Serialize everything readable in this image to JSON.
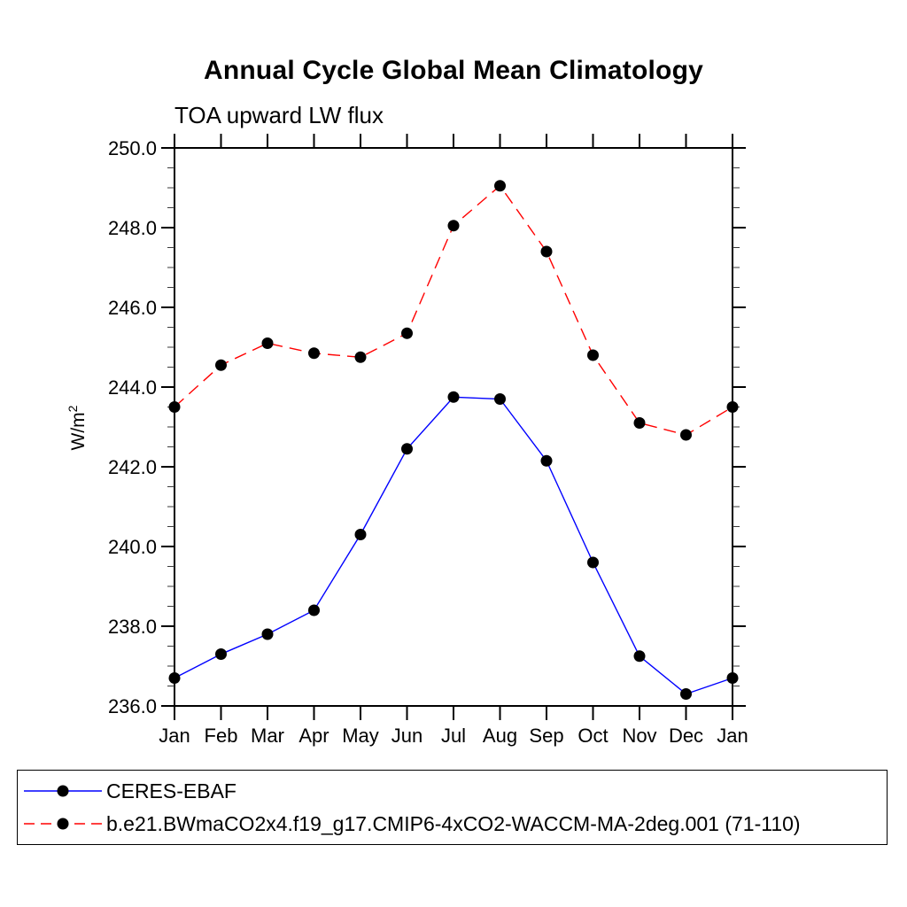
{
  "chart_data": {
    "type": "line",
    "title": "Annual Cycle Global Mean Climatology",
    "subtitle": "TOA upward LW flux",
    "ylabel": "W/m²",
    "ylabel_base": "W/m",
    "ylabel_sup": "2",
    "x_categories": [
      "Jan",
      "Feb",
      "Mar",
      "Apr",
      "May",
      "Jun",
      "Jul",
      "Aug",
      "Sep",
      "Oct",
      "Nov",
      "Dec",
      "Jan"
    ],
    "ylim": [
      236.0,
      250.0
    ],
    "yticks": {
      "values": [
        236.0,
        238.0,
        240.0,
        242.0,
        244.0,
        246.0,
        248.0,
        250.0
      ],
      "labels": [
        "236.0",
        "238.0",
        "240.0",
        "242.0",
        "244.0",
        "246.0",
        "248.0",
        "250.0"
      ]
    },
    "yminor_step": 0.5,
    "grid": false,
    "legend_position": "bottom",
    "marker": "filled-circle",
    "marker_color": "#000000",
    "series": [
      {
        "name": "CERES-EBAF",
        "color": "#0000ff",
        "line_style": "solid",
        "values": [
          236.7,
          237.3,
          237.8,
          238.4,
          240.3,
          242.45,
          243.75,
          243.7,
          242.15,
          239.6,
          237.25,
          236.3,
          236.7
        ]
      },
      {
        "name": "b.e21.BWmaCO2x4.f19_g17.CMIP6-4xCO2-WACCM-MA-2deg.001 (71-110)",
        "color": "#ff0000",
        "line_style": "dashed",
        "values": [
          243.5,
          244.55,
          245.1,
          244.85,
          244.75,
          245.35,
          248.05,
          249.05,
          247.4,
          244.8,
          243.1,
          242.8,
          243.5
        ]
      }
    ]
  }
}
